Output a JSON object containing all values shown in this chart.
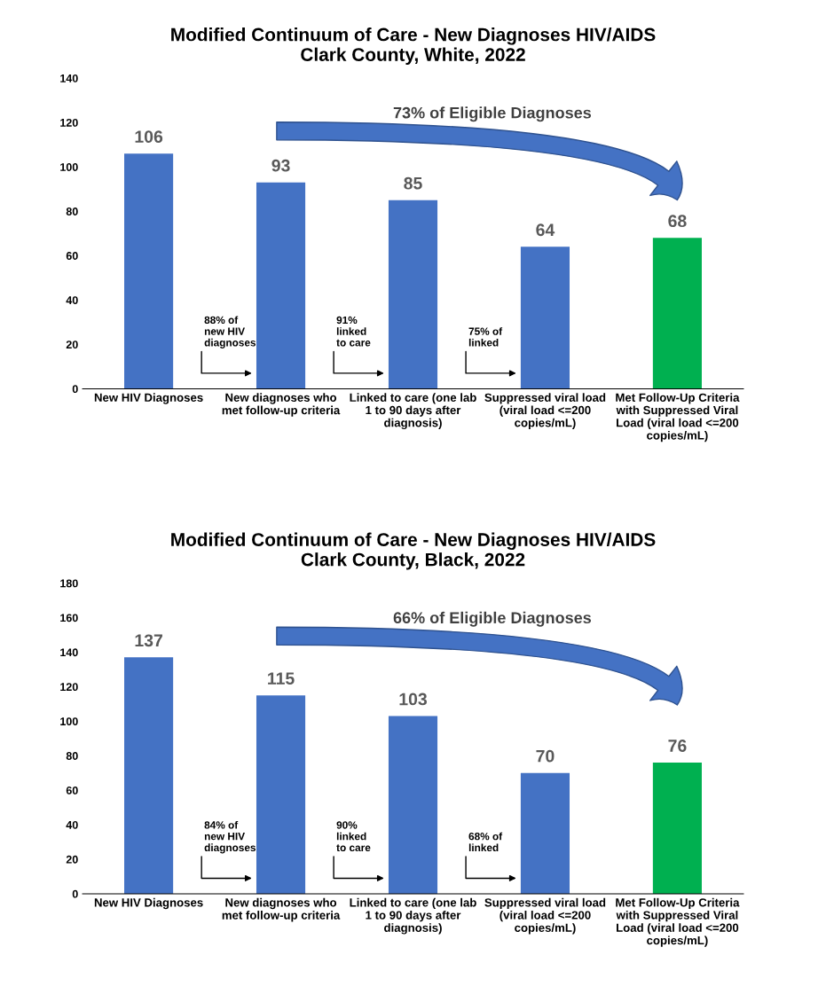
{
  "chart_data": [
    {
      "type": "bar",
      "title": "Modified Continuum of Care - New Diagnoses HIV/AIDS\nClark County, White, 2022",
      "categories": [
        "New HIV Diagnoses",
        "New diagnoses who\nmet follow-up criteria",
        "Linked to care (one lab\n1 to 90 days after\ndiagnosis)",
        "Suppressed viral load\n(viral load <=200\ncopies/mL)",
        "Met Follow-Up Criteria\nwith Suppressed Viral\nLoad (viral load <=200\ncopies/mL)"
      ],
      "values": [
        106,
        93,
        85,
        64,
        68
      ],
      "colors": [
        "#4472c4",
        "#4472c4",
        "#4472c4",
        "#4472c4",
        "#00b050"
      ],
      "ylim": [
        0,
        140
      ],
      "yticks": [
        0,
        20,
        40,
        60,
        80,
        100,
        120,
        140
      ],
      "grid": false,
      "data_labels": true,
      "annotations": [
        "73% of Eligible Diagnoses",
        "88% of\nnew HIV\ndiagnoses",
        "91%\nlinked\nto care",
        "75% of\nlinked"
      ]
    },
    {
      "type": "bar",
      "title": "Modified Continuum of Care - New Diagnoses HIV/AIDS\nClark County, Black, 2022",
      "categories": [
        "New HIV Diagnoses",
        "New diagnoses who\nmet follow-up criteria",
        "Linked to care (one lab\n1 to 90 days after\ndiagnosis)",
        "Suppressed viral load\n(viral load <=200\ncopies/mL)",
        "Met Follow-Up Criteria\nwith Suppressed Viral\nLoad (viral load <=200\ncopies/mL)"
      ],
      "values": [
        137,
        115,
        103,
        70,
        76
      ],
      "colors": [
        "#4472c4",
        "#4472c4",
        "#4472c4",
        "#4472c4",
        "#00b050"
      ],
      "ylim": [
        0,
        180
      ],
      "yticks": [
        0,
        20,
        40,
        60,
        80,
        100,
        120,
        140,
        160,
        180
      ],
      "grid": false,
      "data_labels": true,
      "annotations": [
        "66% of Eligible Diagnoses",
        "84% of\nnew HIV\ndiagnoses",
        "90%\nlinked\nto care",
        "68% of\nlinked"
      ]
    }
  ]
}
